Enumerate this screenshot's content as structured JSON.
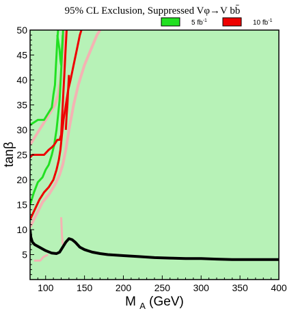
{
  "chart_data": {
    "type": "line",
    "title": "95% CL Exclusion, Suppressed Vφ→V bb̄",
    "xlabel": "M_A (GeV)",
    "ylabel": "tanβ",
    "xlim": [
      80,
      400
    ],
    "ylim": [
      0,
      50
    ],
    "x_ticks": [
      100,
      150,
      200,
      250,
      300,
      350,
      400
    ],
    "y_ticks": [
      5,
      10,
      15,
      20,
      25,
      30,
      35,
      40,
      45,
      50
    ],
    "grid": false,
    "background_color": "#b7f2b7",
    "legend": {
      "placement": "top-right",
      "entries": [
        {
          "label": "5 fb",
          "sup": "-1",
          "color": "#22e022"
        },
        {
          "label": "10 fb",
          "sup": "-1",
          "color": "#ee0000"
        }
      ]
    },
    "series": [
      {
        "color": "#f4b3b3",
        "width": 4,
        "points": [
          [
            80,
            27
          ],
          [
            86,
            28.5
          ],
          [
            92,
            30
          ],
          [
            100,
            32
          ],
          [
            106,
            33.5
          ],
          [
            112,
            35
          ],
          [
            116,
            37
          ],
          [
            119,
            40
          ],
          [
            121,
            43
          ],
          [
            123,
            46
          ],
          [
            125,
            49
          ],
          [
            126,
            50
          ]
        ]
      },
      {
        "color": "#f4b3b3",
        "width": 4,
        "points": [
          [
            80,
            10.5
          ],
          [
            88,
            13
          ],
          [
            96,
            15.5
          ],
          [
            104,
            17
          ],
          [
            112,
            19
          ],
          [
            118,
            21
          ],
          [
            122,
            23
          ],
          [
            126,
            26
          ],
          [
            130,
            30
          ],
          [
            136,
            35
          ],
          [
            142,
            39
          ],
          [
            150,
            43
          ],
          [
            158,
            46
          ],
          [
            166,
            49
          ],
          [
            170,
            50
          ]
        ]
      },
      {
        "color": "#f4b3b3",
        "width": 3,
        "points": [
          [
            120,
            12.5
          ],
          [
            121,
            9
          ],
          [
            122,
            7
          ]
        ]
      },
      {
        "color": "#f4b3b3",
        "width": 3,
        "points": [
          [
            85,
            3.8
          ],
          [
            93,
            3.8
          ],
          [
            97,
            4.5
          ],
          [
            103,
            5
          ]
        ]
      },
      {
        "color": "#22e022",
        "width": 3,
        "points": [
          [
            80,
            31
          ],
          [
            85,
            31.5
          ],
          [
            90,
            32
          ],
          [
            98,
            32
          ],
          [
            102,
            33
          ],
          [
            108,
            34.5
          ],
          [
            110,
            37
          ],
          [
            112,
            39
          ],
          [
            113,
            42
          ],
          [
            114,
            45
          ],
          [
            115,
            48
          ],
          [
            116,
            50
          ]
        ]
      },
      {
        "color": "#22e022",
        "width": 3,
        "points": [
          [
            80,
            15
          ],
          [
            85,
            17.5
          ],
          [
            90,
            19.5
          ],
          [
            96,
            20.5
          ],
          [
            100,
            22
          ],
          [
            104,
            23
          ],
          [
            108,
            25
          ],
          [
            111,
            27
          ],
          [
            114,
            30
          ],
          [
            116,
            33
          ],
          [
            118,
            36
          ],
          [
            119,
            39
          ],
          [
            120,
            42
          ],
          [
            121,
            45
          ],
          [
            122,
            48
          ],
          [
            122.5,
            50
          ]
        ]
      },
      {
        "color": "#22e022",
        "width": 3,
        "points": [
          [
            115,
            49
          ],
          [
            118,
            46
          ],
          [
            119,
            44
          ],
          [
            120,
            43
          ],
          [
            121,
            46
          ],
          [
            122,
            49
          ]
        ]
      },
      {
        "color": "#ee0000",
        "width": 3,
        "points": [
          [
            80,
            24.5
          ],
          [
            83,
            25
          ],
          [
            88,
            25
          ],
          [
            98,
            25
          ],
          [
            104,
            26
          ],
          [
            108,
            26.5
          ],
          [
            111,
            27
          ],
          [
            115,
            28
          ],
          [
            118,
            28
          ],
          [
            120,
            29
          ],
          [
            121,
            32
          ],
          [
            122,
            35
          ],
          [
            123,
            38
          ],
          [
            124,
            41
          ],
          [
            125,
            44
          ],
          [
            126,
            47
          ],
          [
            127,
            50
          ]
        ]
      },
      {
        "color": "#ee0000",
        "width": 3,
        "points": [
          [
            80,
            12
          ],
          [
            86,
            14
          ],
          [
            92,
            16
          ],
          [
            98,
            17.5
          ],
          [
            104,
            18.5
          ],
          [
            110,
            20
          ],
          [
            114,
            22
          ],
          [
            117,
            24
          ],
          [
            119,
            26
          ],
          [
            121,
            29
          ],
          [
            123,
            32
          ],
          [
            125,
            34
          ],
          [
            127,
            36
          ],
          [
            129,
            38
          ],
          [
            132,
            40
          ],
          [
            136,
            43
          ],
          [
            140,
            46
          ],
          [
            144,
            49
          ],
          [
            146,
            50
          ]
        ]
      },
      {
        "color": "#ee0000",
        "width": 3,
        "points": [
          [
            126,
            30
          ],
          [
            127,
            33
          ],
          [
            128,
            35
          ],
          [
            129,
            38
          ],
          [
            130,
            41
          ]
        ]
      },
      {
        "color": "#000000",
        "width": 4,
        "points": [
          [
            80,
            10
          ],
          [
            81,
            8.5
          ],
          [
            83,
            7.5
          ],
          [
            86,
            7
          ],
          [
            92,
            6.5
          ],
          [
            100,
            5.8
          ],
          [
            108,
            5.3
          ],
          [
            114,
            5.2
          ],
          [
            118,
            5.5
          ],
          [
            122,
            6.5
          ],
          [
            126,
            7.5
          ],
          [
            130,
            8.2
          ],
          [
            134,
            8
          ],
          [
            138,
            7.5
          ],
          [
            144,
            6.5
          ],
          [
            150,
            6
          ],
          [
            160,
            5.5
          ],
          [
            170,
            5.2
          ],
          [
            180,
            5
          ],
          [
            200,
            4.8
          ],
          [
            220,
            4.6
          ],
          [
            240,
            4.4
          ],
          [
            260,
            4.3
          ],
          [
            280,
            4.2
          ],
          [
            300,
            4.2
          ],
          [
            320,
            4.1
          ],
          [
            340,
            4
          ],
          [
            360,
            4
          ],
          [
            380,
            4
          ],
          [
            400,
            4
          ]
        ]
      }
    ]
  }
}
